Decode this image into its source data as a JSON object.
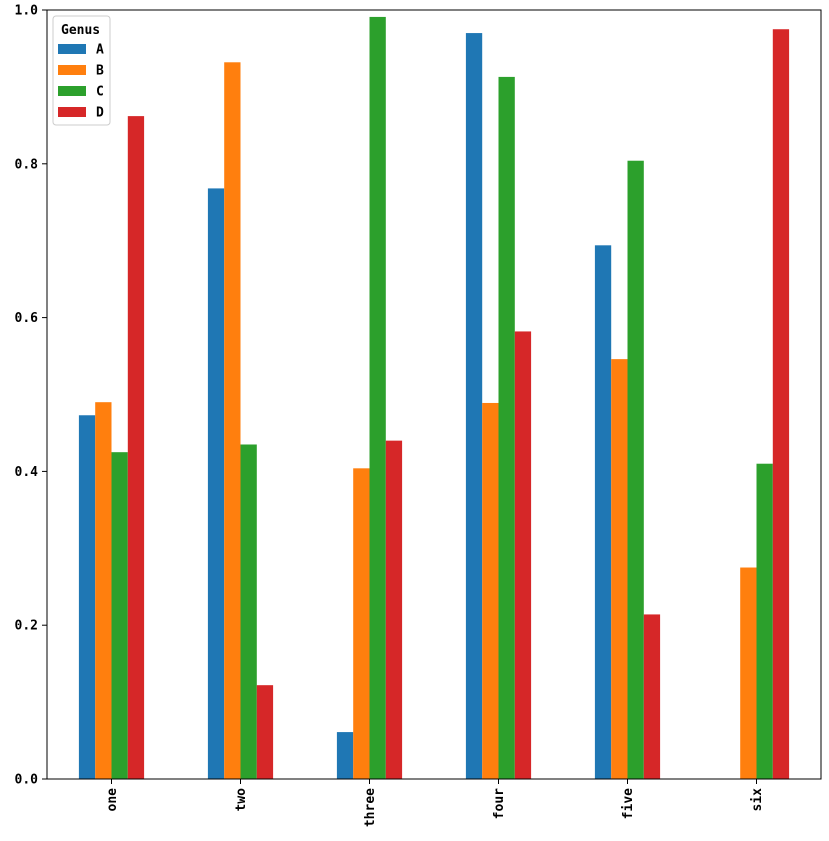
{
  "chart_data": {
    "type": "bar",
    "categories": [
      "one",
      "two",
      "three",
      "four",
      "five",
      "six"
    ],
    "series": [
      {
        "name": "A",
        "color": "#1f77b4",
        "values": [
          0.473,
          0.768,
          0.061,
          0.97,
          0.694,
          0.0
        ]
      },
      {
        "name": "B",
        "color": "#ff7f0e",
        "values": [
          0.49,
          0.932,
          0.404,
          0.489,
          0.546,
          0.275
        ]
      },
      {
        "name": "C",
        "color": "#2ca02c",
        "values": [
          0.425,
          0.435,
          0.991,
          0.913,
          0.804,
          0.41
        ]
      },
      {
        "name": "D",
        "color": "#d62728",
        "values": [
          0.862,
          0.122,
          0.44,
          0.582,
          0.214,
          0.975
        ]
      }
    ],
    "ylim": [
      0,
      1.0
    ],
    "yticks": [
      "0.0",
      "0.2",
      "0.4",
      "0.6",
      "0.8",
      "1.0"
    ],
    "legend": {
      "title": "Genus",
      "placement": "top-left"
    },
    "grid": false
  }
}
